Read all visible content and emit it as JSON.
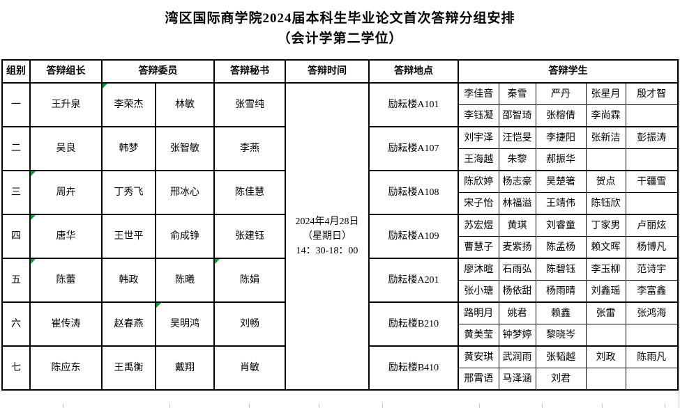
{
  "title": {
    "line1": "湾区国际商学院2024届本科生毕业论文首次答辩分组安排",
    "line2": "（会计学第二学位）"
  },
  "table": {
    "headers": {
      "group": "组别",
      "leader": "答辩组长",
      "committee": "答辩委员",
      "secretary": "答辩秘书",
      "time": "答辩时间",
      "location": "答辩地点",
      "students": "答辩学生"
    },
    "time_lines": [
      "2024年4月28日",
      "（星期日）",
      "14：30-18：00"
    ],
    "groups": [
      {
        "label": "一",
        "leader": "王升泉",
        "committee": [
          "李荣杰",
          "林敏"
        ],
        "secretary": "张雪纯",
        "location": "励耘楼A101",
        "students": [
          [
            "李佳音",
            "秦雪",
            "严丹",
            "张星月",
            "殷才智"
          ],
          [
            "李钰凝",
            "邵智琦",
            "张榕倩",
            "李尚霖",
            ""
          ]
        ]
      },
      {
        "label": "二",
        "leader": "吴良",
        "committee": [
          "韩梦",
          "张智敏"
        ],
        "secretary": "李燕",
        "location": "励耘楼A107",
        "students": [
          [
            "刘宇泽",
            "汪恺旻",
            "李捷阳",
            "张新洁",
            "彭振涛"
          ],
          [
            "王海越",
            "朱黎",
            "郝振华",
            "",
            ""
          ]
        ]
      },
      {
        "label": "三",
        "leader": "周卉",
        "committee": [
          "丁秀飞",
          "邢冰心"
        ],
        "secretary": "陈佳慧",
        "location": "励耘楼A108",
        "students": [
          [
            "陈欣婷",
            "杨志豪",
            "吴楚箸",
            "贺点",
            "干疆雪"
          ],
          [
            "宋子怡",
            "林福溢",
            "王靖伟",
            "陈钰欣",
            ""
          ]
        ]
      },
      {
        "label": "四",
        "leader": "唐华",
        "committee": [
          "王世平",
          "俞成铮"
        ],
        "secretary": "张建钰",
        "location": "励耘楼A109",
        "students": [
          [
            "苏宏煜",
            "黄琪",
            "刘睿童",
            "丁家男",
            "卢丽炫"
          ],
          [
            "曹慧子",
            "麦紫扬",
            "陈孟杨",
            "赖文晖",
            "杨博凡"
          ]
        ]
      },
      {
        "label": "五",
        "leader": "陈蕾",
        "committee": [
          "韩政",
          "陈曦"
        ],
        "secretary": "陈娟",
        "location": "励耘楼A201",
        "students": [
          [
            "廖沐暄",
            "石雨弘",
            "陈碧钰",
            "李玉柳",
            "范诗宇"
          ],
          [
            "张小瑭",
            "杨依甜",
            "杨雨晴",
            "刘鑫瑶",
            "李富鑫"
          ]
        ]
      },
      {
        "label": "六",
        "leader": "崔传涛",
        "committee": [
          "赵春燕",
          "吴明鸿"
        ],
        "secretary": "刘畅",
        "location": "励耘楼B210",
        "students": [
          [
            "路明月",
            "姚君",
            "赖鑫",
            "张雷",
            "张鸿海"
          ],
          [
            "黄美莹",
            "钟梦婷",
            "黎晓岑",
            "",
            ""
          ]
        ]
      },
      {
        "label": "七",
        "leader": "陈应东",
        "committee": [
          "王禹衡",
          "戴翔"
        ],
        "secretary": "肖敏",
        "location": "励耘楼B410",
        "students": [
          [
            "黄安琪",
            "武润雨",
            "张韬越",
            "刘政",
            "陈雨凡"
          ],
          [
            "邢霄语",
            "马泽涵",
            "刘君",
            "",
            ""
          ]
        ]
      }
    ],
    "error_indicators": [
      {
        "group": 1,
        "cell": "committee1"
      },
      {
        "group": 3,
        "cell": "leader"
      },
      {
        "group": 4,
        "cell": "leader"
      },
      {
        "group": 5,
        "cell": "leader"
      },
      {
        "group": 5,
        "cell": "secretary"
      },
      {
        "group": 6,
        "cell": "committee2"
      }
    ]
  },
  "colors": {
    "border": "#000000",
    "error_indicator": "#00a032",
    "faint_gridline": "#c8c8c8"
  }
}
